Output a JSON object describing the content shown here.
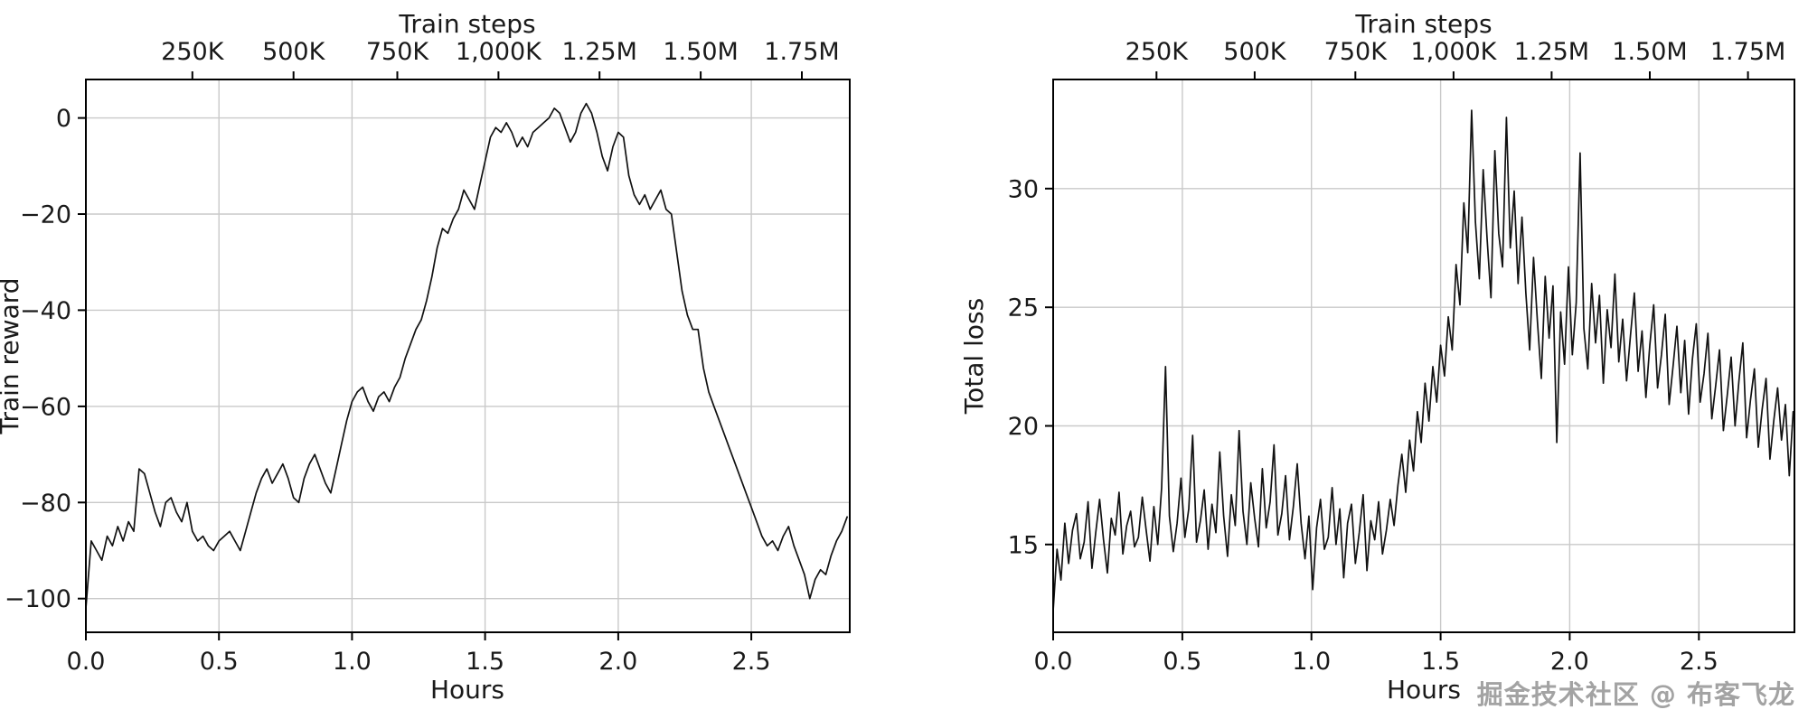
{
  "figure": {
    "background": "#ffffff",
    "line_color": "#111111",
    "grid_color": "#c9c9c9",
    "axis_color": "#000000",
    "text_color": "#1a1a1a"
  },
  "watermark": {
    "text": "掘金技术社区 @ 布客飞龙",
    "color": "#a3a3a3"
  },
  "chart_data": [
    {
      "id": "train-reward",
      "type": "line",
      "title": "",
      "xlabel": "Hours",
      "ylabel": "Train reward",
      "top_axis_label": "Train steps",
      "xlim": [
        0,
        2.87
      ],
      "ylim": [
        -107,
        8
      ],
      "grid": true,
      "legend": "none",
      "x_ticks": [
        0.0,
        0.5,
        1.0,
        1.5,
        2.0,
        2.5
      ],
      "x_tick_labels": [
        "0.0",
        "0.5",
        "1.0",
        "1.5",
        "2.0",
        "2.5"
      ],
      "y_ticks": [
        0,
        -20,
        -40,
        -60,
        -80,
        -100
      ],
      "y_tick_labels": [
        "0",
        "−20",
        "−40",
        "−60",
        "−80",
        "−100"
      ],
      "top_ticks_hours": [
        0.4,
        0.78,
        1.17,
        1.55,
        1.93,
        2.31,
        2.69
      ],
      "top_tick_labels": [
        "250K",
        "500K",
        "750K",
        "1,000K",
        "1.25M",
        "1.50M",
        "1.75M"
      ],
      "series": [
        {
          "name": "train_reward",
          "x_start": 0,
          "x_step": 0.02,
          "y": [
            -102,
            -88,
            -90,
            -92,
            -87,
            -89,
            -85,
            -88,
            -84,
            -86,
            -73,
            -74,
            -78,
            -82,
            -85,
            -80,
            -79,
            -82,
            -84,
            -80,
            -86,
            -88,
            -87,
            -89,
            -90,
            -88,
            -87,
            -86,
            -88,
            -90,
            -86,
            -82,
            -78,
            -75,
            -73,
            -76,
            -74,
            -72,
            -75,
            -79,
            -80,
            -75,
            -72,
            -70,
            -73,
            -76,
            -78,
            -73,
            -68,
            -63,
            -59,
            -57,
            -56,
            -59,
            -61,
            -58,
            -57,
            -59,
            -56,
            -54,
            -50,
            -47,
            -44,
            -42,
            -38,
            -33,
            -27,
            -23,
            -24,
            -21,
            -19,
            -15,
            -17,
            -19,
            -14,
            -9,
            -4,
            -2,
            -3,
            -1,
            -3,
            -6,
            -4,
            -6,
            -3,
            -2,
            -1,
            0,
            2,
            1,
            -2,
            -5,
            -3,
            1,
            3,
            1,
            -3,
            -8,
            -11,
            -6,
            -3,
            -4,
            -12,
            -16,
            -18,
            -16,
            -19,
            -17,
            -15,
            -19,
            -20,
            -28,
            -36,
            -41,
            -44,
            -44,
            -52,
            -57,
            -60,
            -63,
            -66,
            -69,
            -72,
            -75,
            -78,
            -81,
            -84,
            -87,
            -89,
            -88,
            -90,
            -87,
            -85,
            -89,
            -92,
            -95,
            -100,
            -96,
            -94,
            -95,
            -91,
            -88,
            -86,
            -83
          ]
        }
      ]
    },
    {
      "id": "total-loss",
      "type": "line",
      "title": "",
      "xlabel": "Hours",
      "ylabel": "Total loss",
      "top_axis_label": "Train steps",
      "xlim": [
        0,
        2.87
      ],
      "ylim": [
        11.3,
        34.6
      ],
      "grid": true,
      "legend": "none",
      "x_ticks": [
        0.0,
        0.5,
        1.0,
        1.5,
        2.0,
        2.5
      ],
      "x_tick_labels": [
        "0.0",
        "0.5",
        "1.0",
        "1.5",
        "2.0",
        "2.5"
      ],
      "y_ticks": [
        15,
        20,
        25,
        30
      ],
      "y_tick_labels": [
        "15",
        "20",
        "25",
        "30"
      ],
      "top_ticks_hours": [
        0.4,
        0.78,
        1.17,
        1.55,
        1.93,
        2.31,
        2.69
      ],
      "top_tick_labels": [
        "250K",
        "500K",
        "750K",
        "1,000K",
        "1.25M",
        "1.50M",
        "1.75M"
      ],
      "series": [
        {
          "name": "total_loss",
          "x_start": 0,
          "x_step": 0.015,
          "y": [
            12.2,
            14.8,
            13.5,
            15.9,
            14.2,
            15.6,
            16.3,
            14.4,
            15.1,
            16.8,
            14.0,
            15.5,
            16.9,
            15.2,
            13.8,
            16.1,
            15.4,
            17.2,
            14.6,
            15.8,
            16.4,
            14.9,
            15.3,
            17.0,
            15.6,
            14.3,
            16.6,
            15.0,
            17.4,
            22.5,
            16.2,
            14.7,
            15.9,
            17.8,
            15.3,
            16.5,
            19.6,
            15.1,
            16.0,
            17.3,
            14.8,
            16.7,
            15.5,
            18.9,
            16.2,
            14.5,
            17.1,
            15.8,
            19.8,
            16.4,
            15.0,
            17.6,
            16.1,
            14.9,
            18.2,
            15.7,
            16.8,
            19.2,
            15.4,
            16.3,
            17.9,
            15.2,
            16.6,
            18.4,
            15.9,
            14.4,
            16.2,
            13.1,
            15.7,
            16.9,
            14.8,
            15.3,
            17.4,
            15.0,
            16.5,
            13.6,
            15.9,
            16.7,
            14.2,
            15.5,
            17.1,
            13.9,
            16.0,
            15.2,
            16.8,
            14.6,
            15.6,
            16.9,
            15.8,
            17.5,
            18.8,
            17.2,
            19.4,
            18.1,
            20.6,
            19.3,
            21.8,
            20.2,
            22.5,
            21.0,
            23.4,
            22.1,
            24.6,
            23.2,
            26.8,
            25.1,
            29.4,
            27.3,
            33.3,
            28.6,
            26.2,
            30.8,
            27.9,
            25.4,
            31.6,
            28.1,
            26.7,
            33.0,
            27.5,
            29.9,
            26.0,
            28.8,
            25.6,
            23.2,
            27.1,
            24.4,
            22.0,
            26.3,
            23.7,
            25.9,
            19.3,
            24.8,
            22.6,
            26.7,
            23.0,
            25.2,
            31.5,
            24.1,
            22.4,
            26.0,
            23.5,
            25.5,
            21.8,
            24.9,
            23.3,
            26.4,
            22.7,
            24.5,
            21.9,
            23.8,
            25.6,
            22.3,
            24.0,
            21.2,
            23.4,
            25.1,
            21.6,
            23.0,
            24.7,
            20.9,
            22.5,
            24.2,
            21.4,
            23.6,
            20.5,
            22.8,
            24.3,
            21.0,
            22.2,
            23.9,
            20.3,
            21.7,
            23.2,
            19.8,
            21.3,
            22.9,
            20.0,
            21.9,
            23.5,
            19.5,
            21.1,
            22.4,
            19.1,
            20.7,
            22.0,
            18.6,
            20.2,
            21.6,
            19.4,
            20.9,
            17.9,
            20.6
          ]
        }
      ]
    }
  ]
}
